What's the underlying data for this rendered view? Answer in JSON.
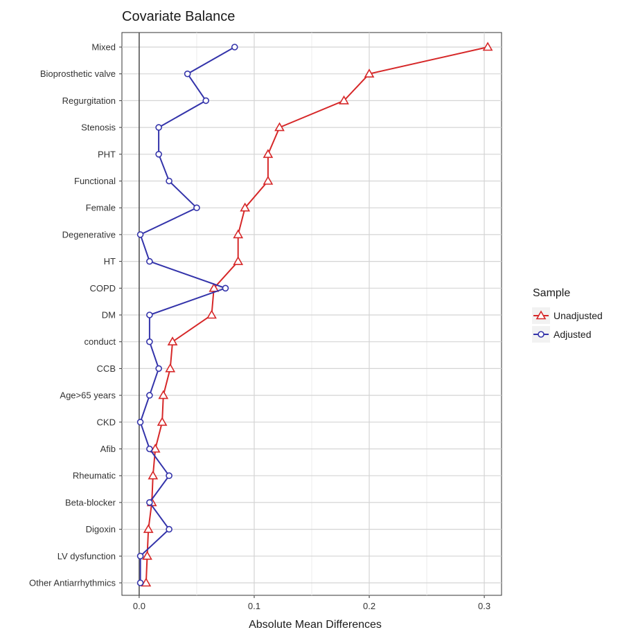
{
  "chart_data": {
    "type": "scatter",
    "title": "Covariate Balance",
    "xlabel": "Absolute Mean Differences",
    "ylabel": "",
    "xlim": [
      -0.015,
      0.315
    ],
    "xticks": [
      0.0,
      0.1,
      0.2,
      0.3
    ],
    "xtick_labels": [
      "0.0",
      "0.1",
      "0.2",
      "0.3"
    ],
    "grid": true,
    "reference_line_x": 0,
    "legend": {
      "title": "Sample",
      "position": "right"
    },
    "categories": [
      "Mixed",
      "Bioprosthetic valve",
      "Regurgitation",
      "Stenosis",
      "PHT",
      "Functional",
      "Female",
      "Degenerative",
      "HT",
      "COPD",
      "DM",
      "conduct",
      "CCB",
      "Age>65 years",
      "CKD",
      "Afib",
      "Rheumatic",
      "Beta-blocker",
      "Digoxin",
      "LV dysfunction",
      "Other Antiarrhythmics"
    ],
    "series": [
      {
        "name": "Unadjusted",
        "color": "#d62728",
        "marker": "triangle",
        "values": [
          0.303,
          0.2,
          0.178,
          0.122,
          0.112,
          0.112,
          0.092,
          0.086,
          0.086,
          0.065,
          0.063,
          0.029,
          0.027,
          0.021,
          0.02,
          0.014,
          0.012,
          0.011,
          0.008,
          0.007,
          0.006
        ]
      },
      {
        "name": "Adjusted",
        "color": "#3333aa",
        "marker": "circle",
        "values": [
          0.083,
          0.042,
          0.058,
          0.017,
          0.017,
          0.026,
          0.05,
          0.001,
          0.009,
          0.075,
          0.009,
          0.009,
          0.017,
          0.009,
          0.001,
          0.009,
          0.026,
          0.009,
          0.026,
          0.001,
          0.001
        ]
      }
    ]
  }
}
